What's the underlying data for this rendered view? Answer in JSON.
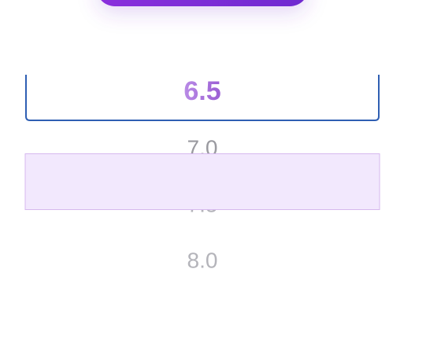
{
  "picker": {
    "selected": "6.5",
    "options": [
      "7.0",
      "7.5",
      "8.0"
    ]
  }
}
